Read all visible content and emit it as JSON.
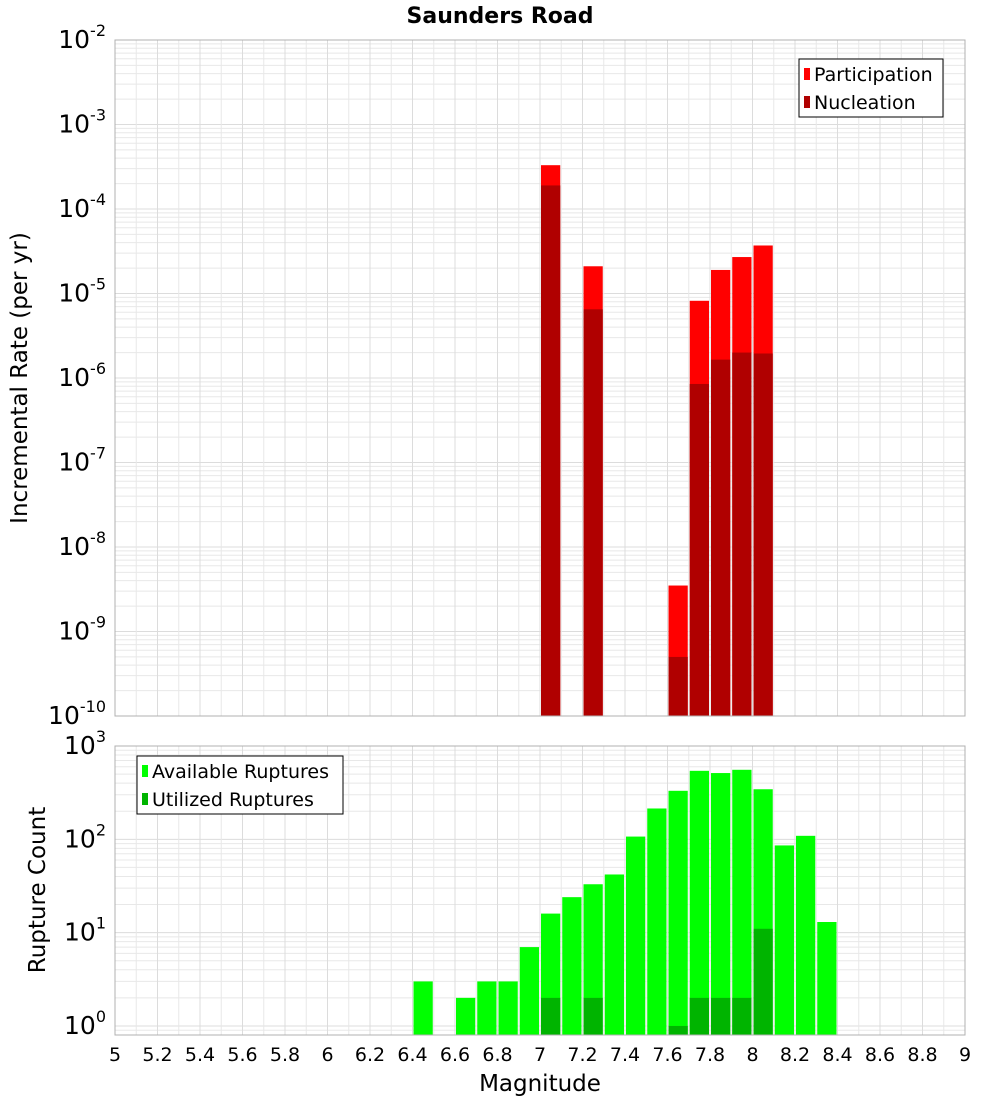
{
  "chart_data": [
    {
      "type": "bar",
      "title": "Saunders Road",
      "ylabel": "Incremental Rate (per yr)",
      "xlabel": "",
      "xlim": [
        5,
        9
      ],
      "ylim": [
        1e-10,
        0.01
      ],
      "yscale": "log",
      "ytick_exponents": [
        -10,
        -9,
        -8,
        -7,
        -6,
        -5,
        -4,
        -3,
        -2
      ],
      "grid": true,
      "legend_position": "top-right",
      "bin_width": 0.1,
      "legend": [
        "Participation",
        "Nucleation"
      ],
      "colors": {
        "Participation": "#ff0000",
        "Nucleation": "#b00000"
      },
      "series": [
        {
          "name": "Participation",
          "x": [
            7.05,
            7.25,
            7.65,
            7.75,
            7.85,
            7.95,
            8.05
          ],
          "values": [
            0.00033,
            2.1e-05,
            3.5e-09,
            8.2e-06,
            1.9e-05,
            2.7e-05,
            3.7e-05
          ]
        },
        {
          "name": "Nucleation",
          "x": [
            7.05,
            7.25,
            7.65,
            7.75,
            7.85,
            7.95,
            8.05
          ],
          "values": [
            0.00019,
            6.5e-06,
            5e-10,
            8.5e-07,
            1.65e-06,
            2e-06,
            1.95e-06
          ]
        }
      ]
    },
    {
      "type": "bar",
      "title": "",
      "ylabel": "Rupture Count",
      "xlabel": "Magnitude",
      "xlim": [
        5,
        9
      ],
      "ylim": [
        0.8,
        1000
      ],
      "yscale": "log",
      "ytick_exponents": [
        0,
        1,
        2,
        3
      ],
      "xticks": [
        "5",
        "5.2",
        "5.4",
        "5.6",
        "5.8",
        "6",
        "6.2",
        "6.4",
        "6.6",
        "6.8",
        "7",
        "7.2",
        "7.4",
        "7.6",
        "7.8",
        "8",
        "8.2",
        "8.4",
        "8.6",
        "8.8",
        "9"
      ],
      "grid": true,
      "legend_position": "top-left",
      "bin_width": 0.1,
      "legend": [
        "Available Ruptures",
        "Utilized Ruptures"
      ],
      "colors": {
        "Available Ruptures": "#00ff00",
        "Utilized Ruptures": "#00b400"
      },
      "series": [
        {
          "name": "Available Ruptures",
          "x": [
            6.45,
            6.65,
            6.75,
            6.85,
            6.95,
            7.05,
            7.15,
            7.25,
            7.35,
            7.45,
            7.55,
            7.65,
            7.75,
            7.85,
            7.95,
            8.05,
            8.15,
            8.25,
            8.35
          ],
          "values": [
            3,
            2,
            3,
            3,
            7,
            16,
            24,
            33,
            42,
            107,
            214,
            331,
            542,
            513,
            556,
            344,
            86,
            109,
            13
          ]
        },
        {
          "name": "Utilized Ruptures",
          "x": [
            7.05,
            7.25,
            7.65,
            7.75,
            7.85,
            7.95,
            8.05
          ],
          "values": [
            2,
            2,
            1,
            2,
            2,
            2,
            11
          ]
        }
      ]
    }
  ]
}
